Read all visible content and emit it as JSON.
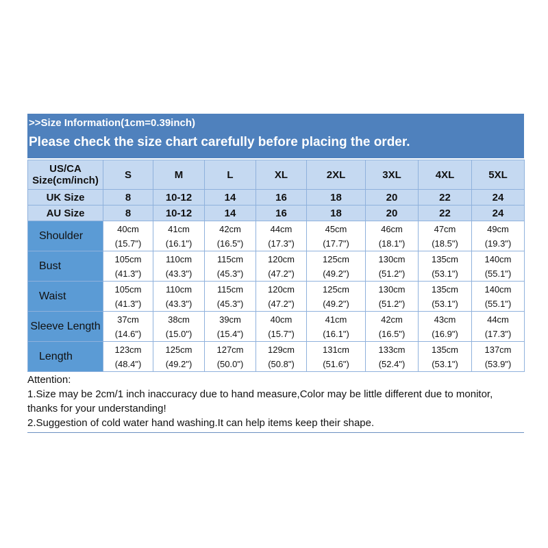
{
  "header": {
    "line1": ">>Size Information(1cm=0.39inch)",
    "line2": "Please check the size chart carefully before placing the order."
  },
  "table": {
    "size_header": "US/CA Size(cm/inch)",
    "sizes": [
      "S",
      "M",
      "L",
      "XL",
      "2XL",
      "3XL",
      "4XL",
      "5XL"
    ],
    "uk": {
      "label": "UK Size",
      "values": [
        "8",
        "10-12",
        "14",
        "16",
        "18",
        "20",
        "22",
        "24"
      ]
    },
    "au": {
      "label": "AU Size",
      "values": [
        "8",
        "10-12",
        "14",
        "16",
        "18",
        "20",
        "22",
        "24"
      ]
    },
    "measurements": [
      {
        "label": "Shoulder",
        "cm": [
          "40cm",
          "41cm",
          "42cm",
          "44cm",
          "45cm",
          "46cm",
          "47cm",
          "49cm"
        ],
        "inch": [
          "(15.7\")",
          "(16.1\")",
          "(16.5\")",
          "(17.3\")",
          "(17.7\")",
          "(18.1\")",
          "(18.5\")",
          "(19.3\")"
        ]
      },
      {
        "label": "Bust",
        "cm": [
          "105cm",
          "110cm",
          "115cm",
          "120cm",
          "125cm",
          "130cm",
          "135cm",
          "140cm"
        ],
        "inch": [
          "(41.3\")",
          "(43.3\")",
          "(45.3\")",
          "(47.2\")",
          "(49.2\")",
          "(51.2\")",
          "(53.1\")",
          "(55.1\")"
        ]
      },
      {
        "label": "Waist",
        "cm": [
          "105cm",
          "110cm",
          "115cm",
          "120cm",
          "125cm",
          "130cm",
          "135cm",
          "140cm"
        ],
        "inch": [
          "(41.3\")",
          "(43.3\")",
          "(45.3\")",
          "(47.2\")",
          "(49.2\")",
          "(51.2\")",
          "(53.1\")",
          "(55.1\")"
        ]
      },
      {
        "label": "Sleeve Length",
        "cm": [
          "37cm",
          "38cm",
          "39cm",
          "40cm",
          "41cm",
          "42cm",
          "43cm",
          "44cm"
        ],
        "inch": [
          "(14.6\")",
          "(15.0\")",
          "(15.4\")",
          "(15.7\")",
          "(16.1\")",
          "(16.5\")",
          "(16.9\")",
          "(17.3\")"
        ]
      },
      {
        "label": "Length",
        "cm": [
          "123cm",
          "125cm",
          "127cm",
          "129cm",
          "131cm",
          "133cm",
          "135cm",
          "137cm"
        ],
        "inch": [
          "(48.4\")",
          "(49.2\")",
          "(50.0\")",
          "(50.8\")",
          "(51.6\")",
          "(52.4\")",
          "(53.1\")",
          "(53.9\")"
        ]
      }
    ]
  },
  "attention": {
    "title": "Attention:",
    "note1": "1.Size may be 2cm/1 inch inaccuracy due to hand measure,Color may be little different due to monitor, thanks for your understanding!",
    "note2": "2.Suggestion of cold water hand washing.It can help items keep their shape."
  },
  "colors": {
    "band": "#4f81bd",
    "size_rows": "#c5d9f1",
    "measure_labels": "#5b9bd5"
  }
}
